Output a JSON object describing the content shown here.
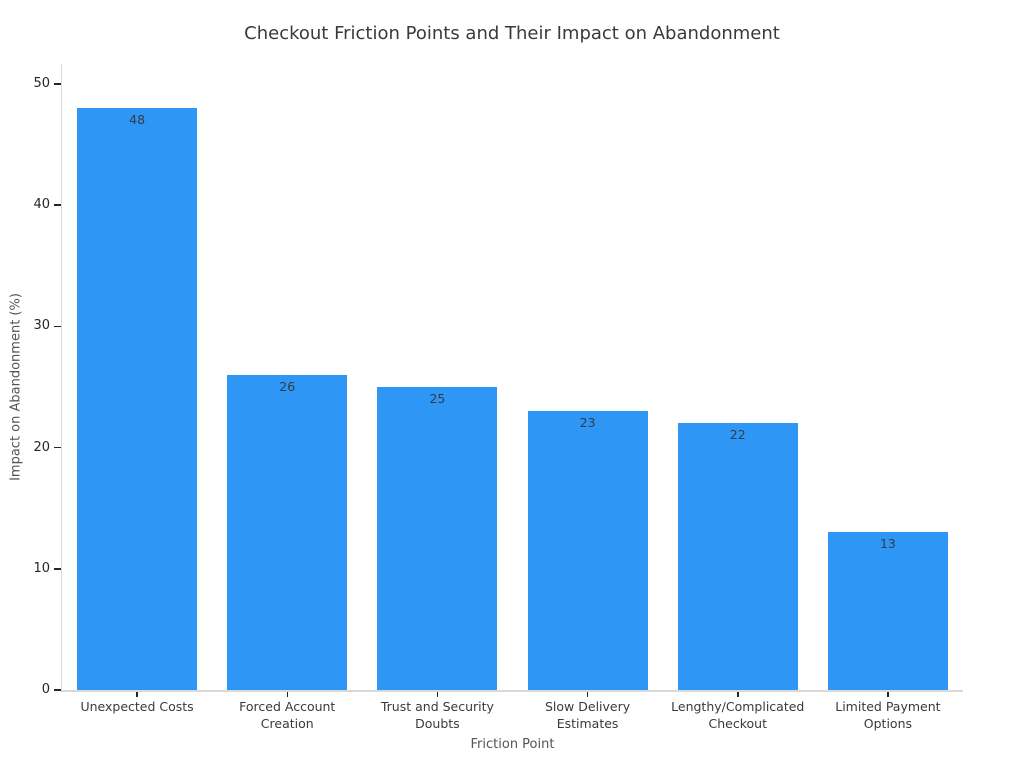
{
  "figure": {
    "background_color": "#ffffff"
  },
  "chart_data": {
    "type": "bar",
    "title": "Checkout Friction Points and Their Impact on Abandonment",
    "xlabel": "Friction Point",
    "ylabel": "Impact on Abandonment (%)",
    "categories": [
      "Unexpected Costs",
      "Forced Account\nCreation",
      "Trust and Security\nDoubts",
      "Slow Delivery\nEstimates",
      "Lengthy/Complicated\nCheckout",
      "Limited Payment\nOptions"
    ],
    "values": [
      48,
      26,
      25,
      23,
      22,
      13
    ],
    "value_labels": [
      "48",
      "26",
      "25",
      "23",
      "22",
      "13"
    ],
    "ylim": [
      0,
      50
    ],
    "yticks": [
      0,
      10,
      20,
      30,
      40,
      50
    ],
    "grid": false,
    "legend_position": "none",
    "bar_color": "#2E96F5",
    "spine_color": "#d9d9d9",
    "tick_color": "#262626",
    "title_color": "#3a3a3a",
    "axis_label_color": "#555555",
    "value_label_color": "#333d47"
  }
}
